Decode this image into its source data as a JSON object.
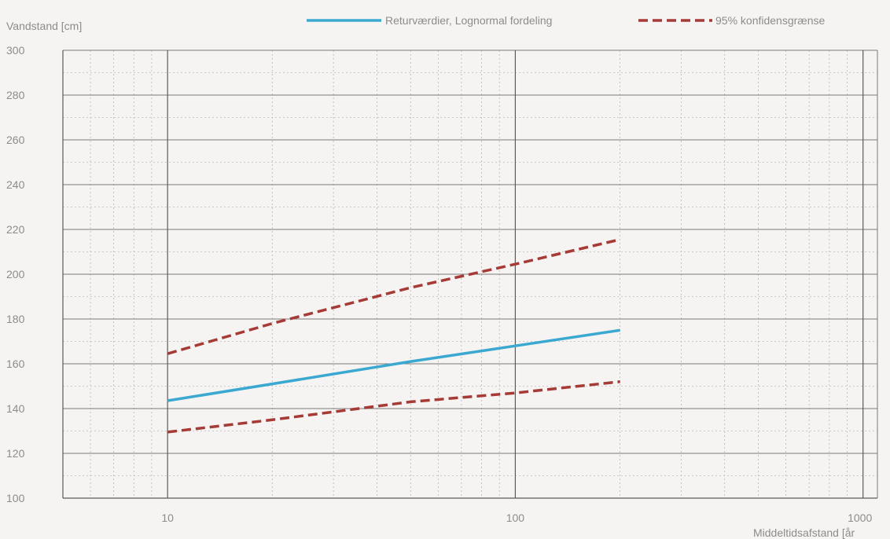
{
  "chart_data": {
    "type": "line",
    "ylabel": "Vandstand [cm]",
    "xlabel": "Middeltidsafstand [år",
    "x_scale": "log",
    "xlim": [
      5,
      1100
    ],
    "ylim": [
      100,
      300
    ],
    "y_ticks": [
      100,
      120,
      140,
      160,
      180,
      200,
      220,
      240,
      260,
      280,
      300
    ],
    "y_tick_labels": [
      "100",
      "120",
      "140",
      "160",
      "180",
      "200",
      "220",
      "240",
      "260",
      "280",
      "300"
    ],
    "x_ticks": [
      10,
      100,
      1000
    ],
    "x_tick_labels": [
      "10",
      "100",
      "1000"
    ],
    "grid": true,
    "legend_position": "top-right",
    "series": [
      {
        "name": "Returværdier, Lognormal fordeling",
        "style": "solid",
        "color": "#3aa8d0",
        "x": [
          10,
          20,
          50,
          100,
          200
        ],
        "y": [
          143.5,
          151,
          161,
          168,
          175
        ]
      },
      {
        "name": "95% konfidensgrænse",
        "style": "dashed",
        "color": "#a63a36",
        "x": [
          10,
          20,
          50,
          100,
          200
        ],
        "y": [
          164.5,
          178,
          194,
          204.5,
          215.5
        ]
      },
      {
        "name": "",
        "style": "dashed",
        "color": "#a63a36",
        "x": [
          10,
          20,
          50,
          100,
          200
        ],
        "y": [
          129.5,
          135,
          143,
          147,
          152
        ]
      }
    ]
  }
}
